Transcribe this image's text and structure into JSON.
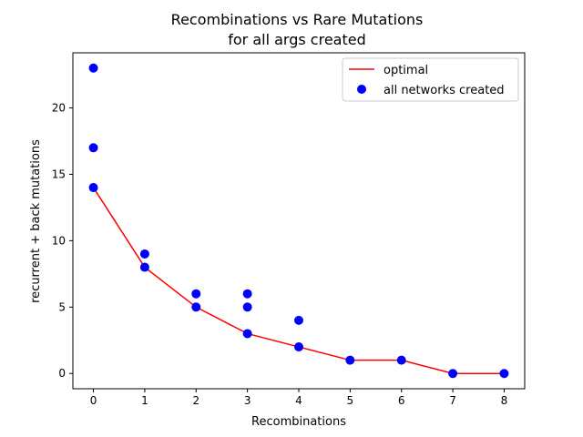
{
  "chart_data": {
    "type": "scatter",
    "title": "Recombinations vs Rare Mutations",
    "subtitle": "for all args created",
    "xlabel": "Recombinations",
    "ylabel": "recurrent + back mutations",
    "xlim": [
      -0.4,
      8.4
    ],
    "ylim": [
      -1.15,
      24.15
    ],
    "x_ticks": [
      0,
      1,
      2,
      3,
      4,
      5,
      6,
      7,
      8
    ],
    "y_ticks": [
      0,
      5,
      10,
      15,
      20
    ],
    "x_tick_labels": [
      "0",
      "1",
      "2",
      "3",
      "4",
      "5",
      "6",
      "7",
      "8"
    ],
    "y_tick_labels": [
      "0",
      "5",
      "10",
      "15",
      "20"
    ],
    "grid": false,
    "legend_position": "top-right",
    "legend": [
      "optimal",
      "all networks created"
    ],
    "series": [
      {
        "name": "optimal",
        "kind": "line",
        "color": "#ff0000",
        "x": [
          0,
          1,
          2,
          3,
          4,
          5,
          6,
          7,
          8
        ],
        "y": [
          14,
          8,
          5,
          3,
          2,
          1,
          1,
          0,
          0
        ]
      },
      {
        "name": "all networks created",
        "kind": "scatter",
        "color": "#0000ff",
        "x": [
          0,
          0,
          0,
          1,
          1,
          2,
          2,
          3,
          3,
          3,
          4,
          4,
          5,
          6,
          7,
          8
        ],
        "y": [
          23,
          17,
          14,
          9,
          8,
          6,
          5,
          6,
          5,
          3,
          4,
          2,
          1,
          1,
          0,
          0
        ]
      }
    ]
  }
}
